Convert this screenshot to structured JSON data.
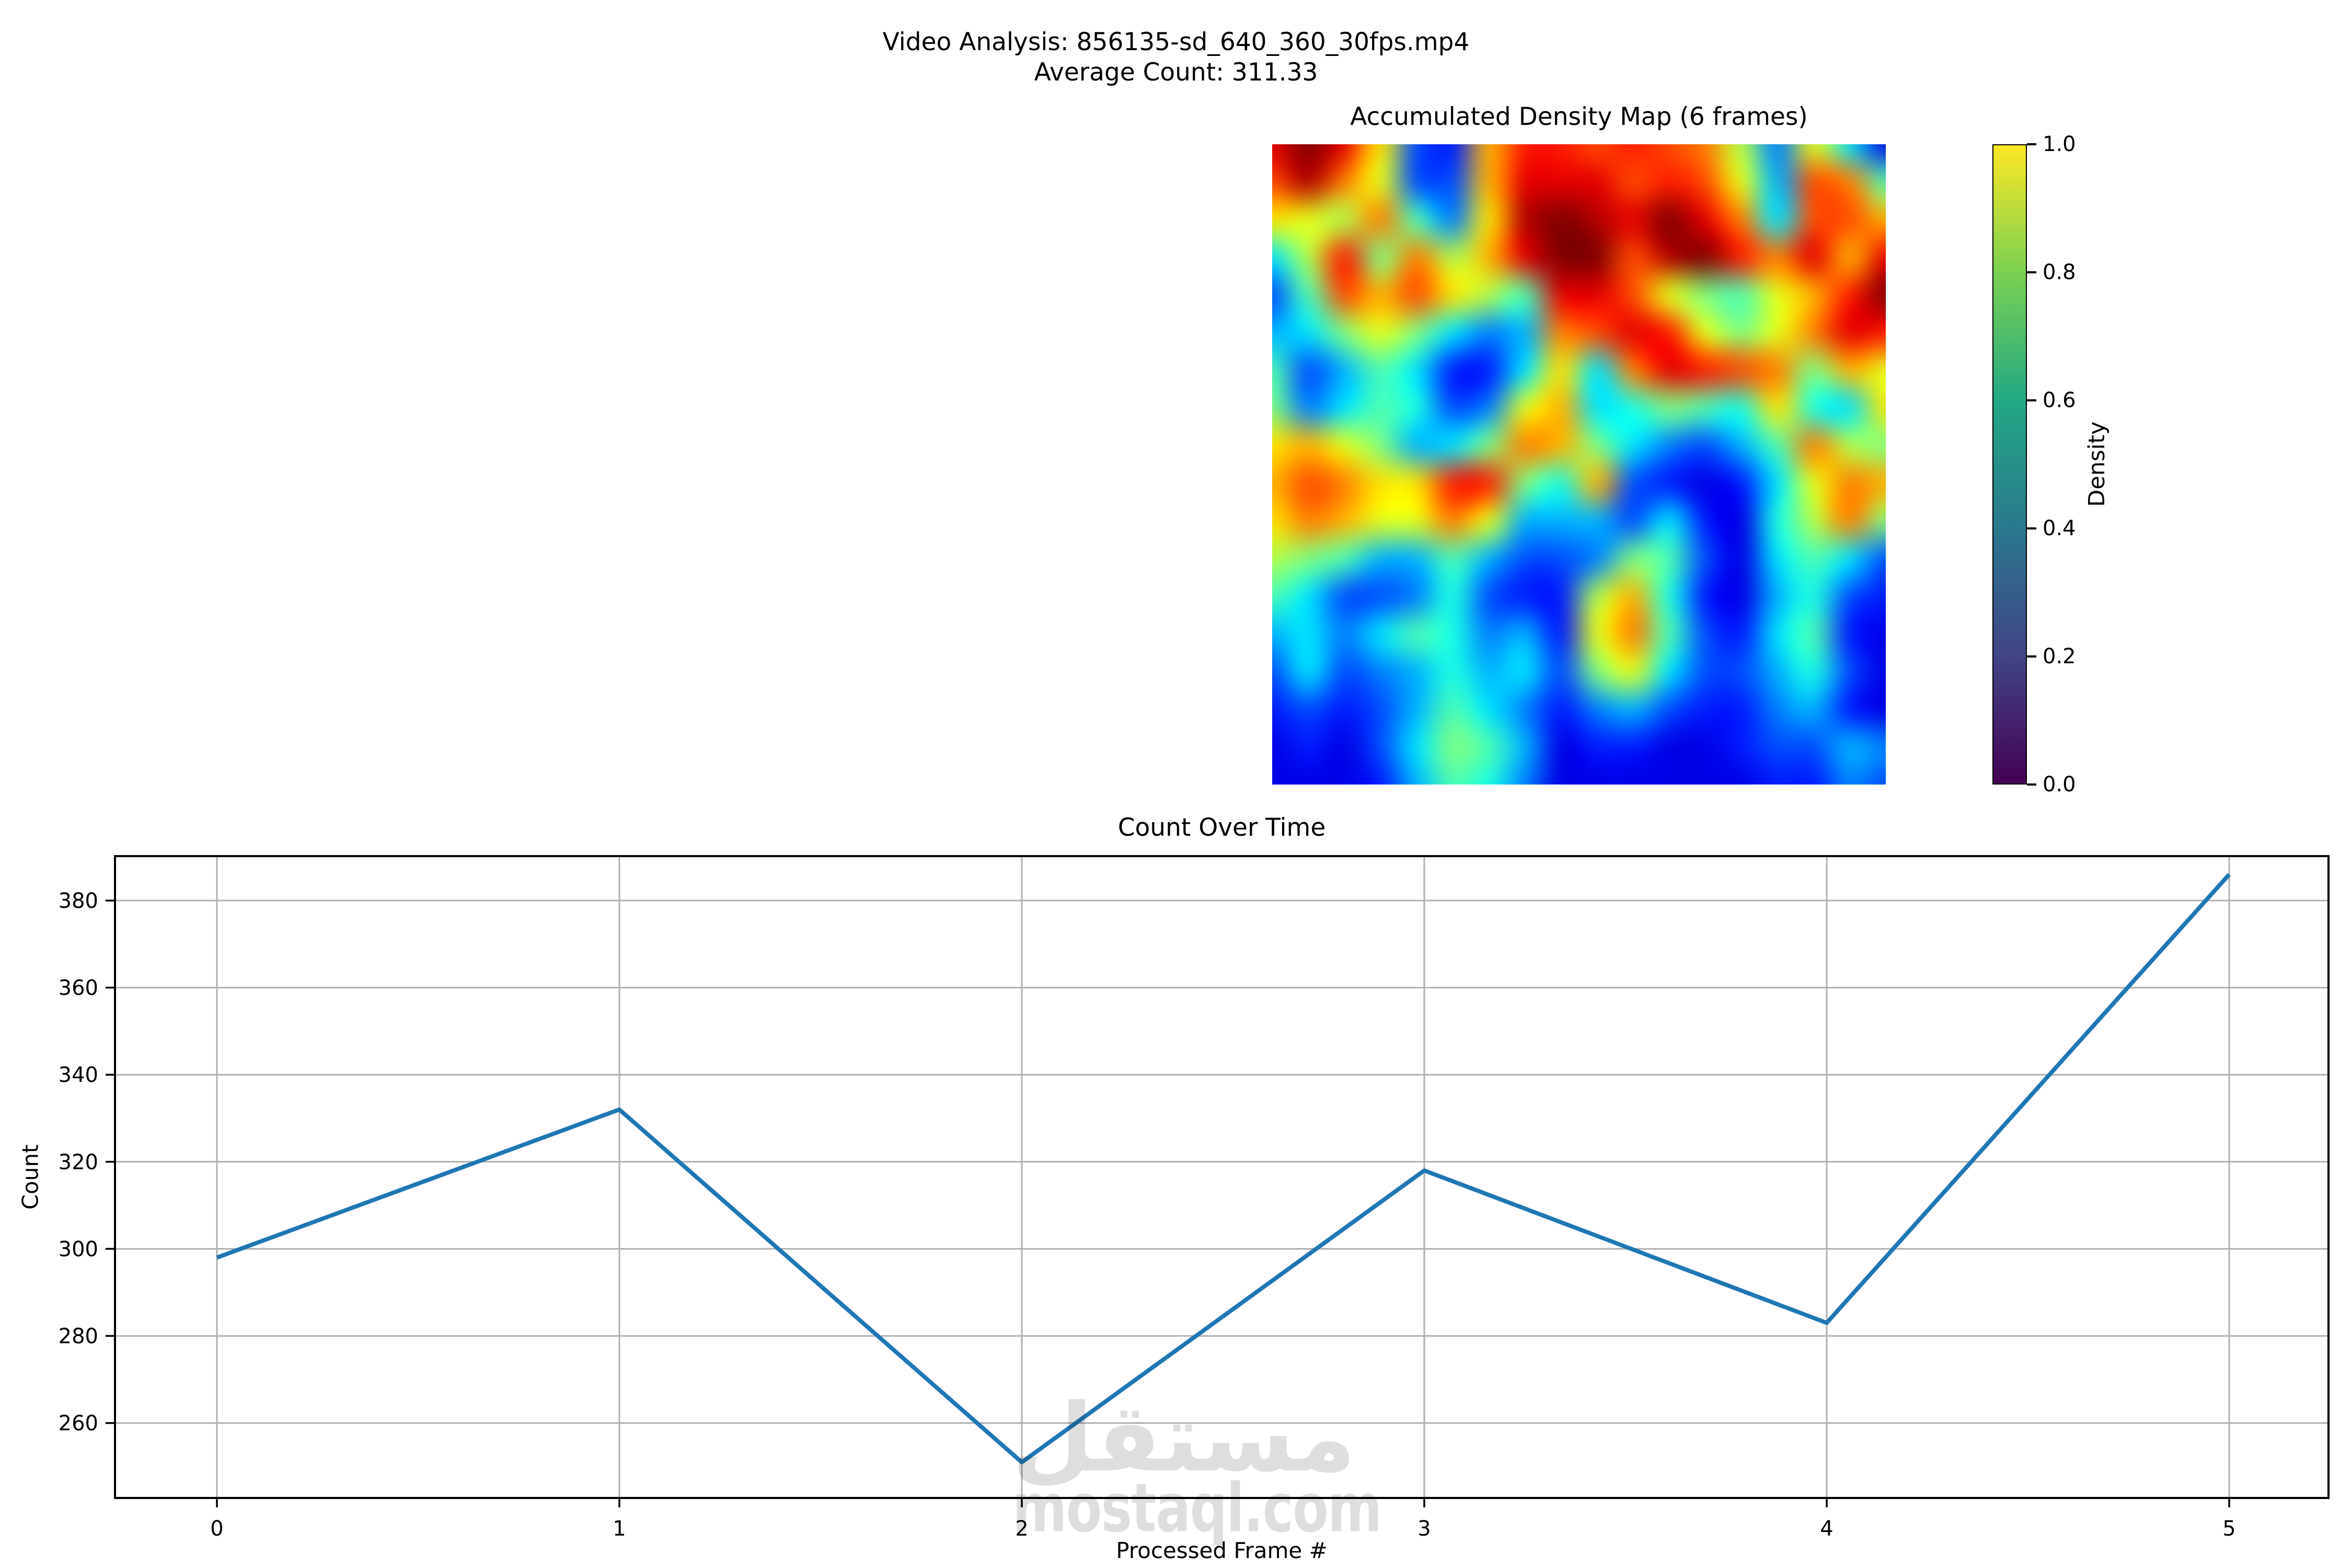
{
  "figure": {
    "suptitle_line1": "Video Analysis: 856135-sd_640_360_30fps.mp4",
    "suptitle_line2": "Average Count: 311.33",
    "background": "#ffffff",
    "text_color": "#000000"
  },
  "density_map": {
    "title": "Accumulated Density Map (6 frames)",
    "frames_accumulated": 6,
    "colormap": "jet",
    "colorbar": {
      "label": "Density",
      "ticks": [
        "1.0",
        "0.8",
        "0.6",
        "0.4",
        "0.2",
        "0.0"
      ],
      "colormap": "viridis",
      "stops": [
        "#440154",
        "#414487",
        "#2a788e",
        "#22a884",
        "#7ad151",
        "#fde725"
      ]
    },
    "grid": [
      [
        0.9,
        1.0,
        0.9,
        0.65,
        0.2,
        0.15,
        0.7,
        0.85,
        0.85,
        0.8,
        0.85,
        0.8,
        0.75,
        0.55,
        0.25,
        0.6,
        0.35,
        0.1
      ],
      [
        0.8,
        0.95,
        0.75,
        0.6,
        0.2,
        0.2,
        0.7,
        0.9,
        0.9,
        0.9,
        0.8,
        0.85,
        0.8,
        0.6,
        0.3,
        0.8,
        0.75,
        0.45
      ],
      [
        0.65,
        0.6,
        0.55,
        0.75,
        0.45,
        0.25,
        0.65,
        0.95,
        1.0,
        0.95,
        0.9,
        1.0,
        0.9,
        0.75,
        0.35,
        0.8,
        0.8,
        0.7
      ],
      [
        0.35,
        0.55,
        0.85,
        0.5,
        0.75,
        0.55,
        0.7,
        0.9,
        1.0,
        1.0,
        0.8,
        0.95,
        1.0,
        0.85,
        0.75,
        0.9,
        0.7,
        0.9
      ],
      [
        0.2,
        0.45,
        0.8,
        0.7,
        0.8,
        0.65,
        0.55,
        0.45,
        0.9,
        0.9,
        0.8,
        0.6,
        0.5,
        0.45,
        0.6,
        0.7,
        0.85,
        1.0
      ],
      [
        0.3,
        0.35,
        0.5,
        0.6,
        0.5,
        0.35,
        0.25,
        0.3,
        0.75,
        0.8,
        0.9,
        0.85,
        0.6,
        0.5,
        0.6,
        0.75,
        0.9,
        0.85
      ],
      [
        0.45,
        0.2,
        0.3,
        0.45,
        0.35,
        0.15,
        0.15,
        0.35,
        0.65,
        0.35,
        0.75,
        0.9,
        0.85,
        0.8,
        0.75,
        0.5,
        0.7,
        0.6
      ],
      [
        0.5,
        0.25,
        0.35,
        0.45,
        0.4,
        0.2,
        0.25,
        0.6,
        0.7,
        0.35,
        0.4,
        0.5,
        0.45,
        0.4,
        0.65,
        0.4,
        0.35,
        0.65
      ],
      [
        0.65,
        0.7,
        0.6,
        0.5,
        0.3,
        0.35,
        0.5,
        0.75,
        0.7,
        0.5,
        0.35,
        0.25,
        0.2,
        0.3,
        0.45,
        0.75,
        0.55,
        0.5
      ],
      [
        0.7,
        0.8,
        0.75,
        0.65,
        0.65,
        0.85,
        0.85,
        0.5,
        0.4,
        0.7,
        0.2,
        0.15,
        0.1,
        0.15,
        0.35,
        0.6,
        0.75,
        0.7
      ],
      [
        0.65,
        0.75,
        0.7,
        0.6,
        0.6,
        0.75,
        0.6,
        0.3,
        0.3,
        0.3,
        0.2,
        0.35,
        0.15,
        0.1,
        0.4,
        0.55,
        0.75,
        0.5
      ],
      [
        0.55,
        0.5,
        0.45,
        0.3,
        0.3,
        0.45,
        0.3,
        0.2,
        0.2,
        0.25,
        0.5,
        0.45,
        0.2,
        0.1,
        0.35,
        0.45,
        0.35,
        0.2
      ],
      [
        0.45,
        0.35,
        0.2,
        0.2,
        0.25,
        0.4,
        0.2,
        0.15,
        0.15,
        0.55,
        0.7,
        0.4,
        0.15,
        0.1,
        0.3,
        0.4,
        0.2,
        0.15
      ],
      [
        0.3,
        0.35,
        0.25,
        0.35,
        0.45,
        0.4,
        0.25,
        0.3,
        0.15,
        0.6,
        0.75,
        0.45,
        0.2,
        0.15,
        0.35,
        0.45,
        0.15,
        0.1
      ],
      [
        0.2,
        0.35,
        0.2,
        0.25,
        0.3,
        0.4,
        0.3,
        0.35,
        0.2,
        0.5,
        0.6,
        0.35,
        0.2,
        0.2,
        0.3,
        0.4,
        0.2,
        0.1
      ],
      [
        0.15,
        0.2,
        0.15,
        0.2,
        0.3,
        0.45,
        0.35,
        0.25,
        0.15,
        0.25,
        0.3,
        0.2,
        0.15,
        0.15,
        0.25,
        0.3,
        0.15,
        0.1
      ],
      [
        0.1,
        0.15,
        0.1,
        0.2,
        0.35,
        0.5,
        0.45,
        0.3,
        0.1,
        0.15,
        0.15,
        0.1,
        0.1,
        0.15,
        0.2,
        0.2,
        0.3,
        0.25
      ],
      [
        0.1,
        0.1,
        0.1,
        0.15,
        0.3,
        0.45,
        0.4,
        0.25,
        0.1,
        0.1,
        0.1,
        0.1,
        0.1,
        0.1,
        0.15,
        0.15,
        0.25,
        0.2
      ]
    ]
  },
  "chart_data": {
    "type": "line",
    "title": "Count Over Time",
    "xlabel": "Processed Frame #",
    "ylabel": "Count",
    "x": [
      0,
      1,
      2,
      3,
      4,
      5
    ],
    "values": [
      298,
      332,
      251,
      318,
      283,
      386
    ],
    "average": 311.33,
    "xticks": [
      0,
      1,
      2,
      3,
      4,
      5
    ],
    "yticks": [
      260,
      280,
      300,
      320,
      340,
      360,
      380
    ],
    "xlim": [
      -0.25,
      5.25
    ],
    "ylim": [
      242.8,
      390.2
    ],
    "grid": true,
    "legend": "none",
    "line_color": "#1f77b4",
    "grid_color": "#b0b0b0",
    "spine_color": "#000000"
  },
  "watermark": {
    "arabic": "مستقل",
    "latin": "mostaql.com"
  }
}
